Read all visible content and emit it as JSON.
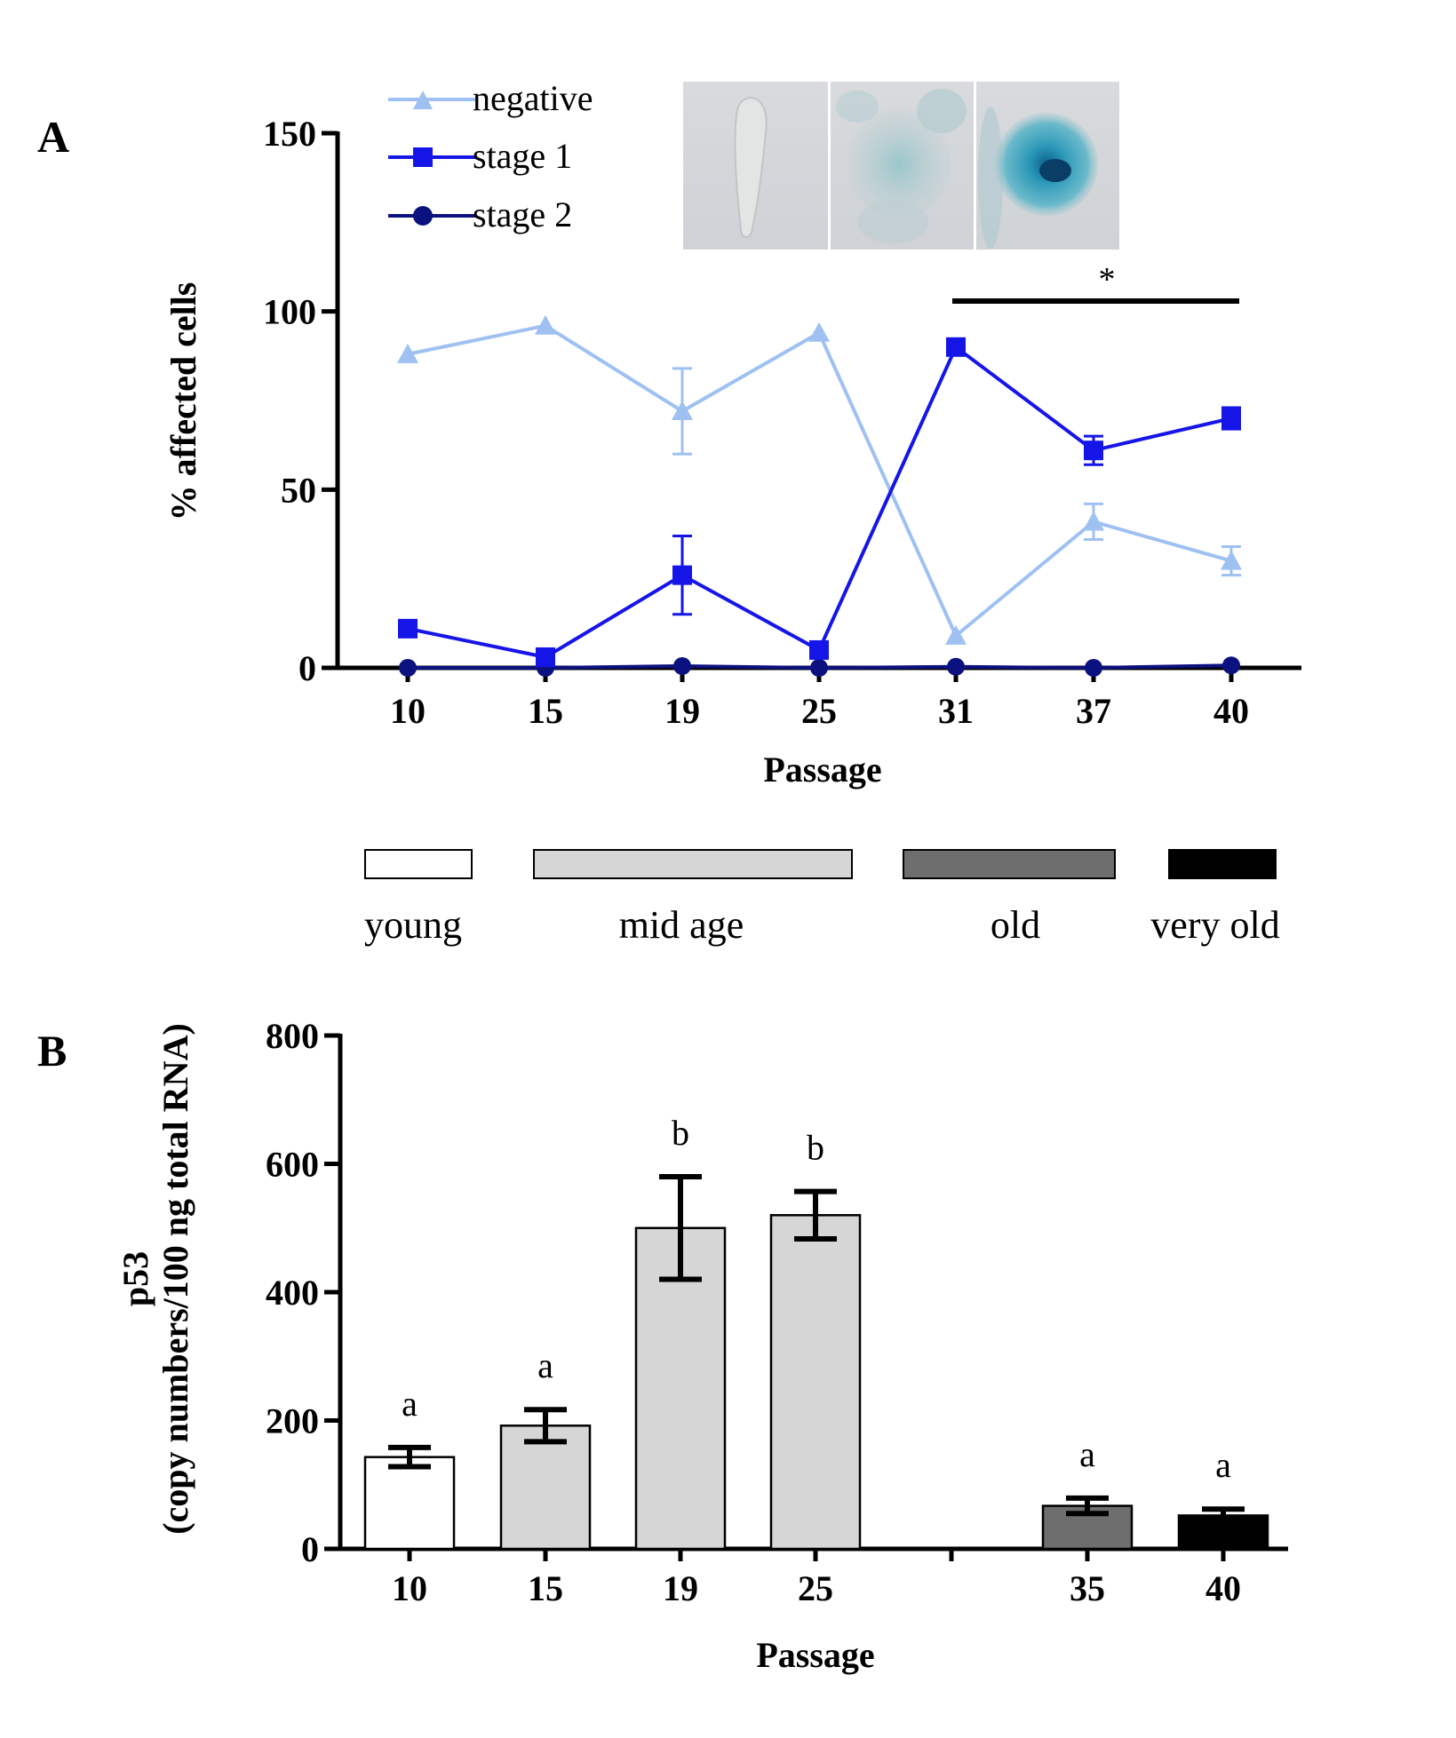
{
  "panels": {
    "a_label": "A",
    "b_label": "B"
  },
  "colors": {
    "negative": "#9ec1f2",
    "stage1": "#1515e8",
    "stage2": "#0c1180",
    "young": "#ffffff",
    "mid_age": "#d6d6d6",
    "old": "#6e6e6e",
    "very_old": "#000000"
  },
  "age_groups": [
    {
      "label": "young",
      "color": "#ffffff"
    },
    {
      "label": "mid age",
      "color": "#d6d6d6"
    },
    {
      "label": "old",
      "color": "#6e6e6e"
    },
    {
      "label": "very old",
      "color": "#000000"
    }
  ],
  "chart_data": [
    {
      "type": "line",
      "panel": "A",
      "xlabel": "Passage",
      "ylabel": "% affected cells",
      "ylim": [
        0,
        150
      ],
      "yticks": [
        "0",
        "50",
        "100",
        "150"
      ],
      "x": [
        "10",
        "15",
        "19",
        "25",
        "31",
        "37",
        "40"
      ],
      "legend_position": "top-left",
      "series": [
        {
          "name": "negative",
          "marker": "triangle",
          "color": "#9ec1f2",
          "values": [
            88,
            96,
            72,
            94,
            9,
            41,
            30
          ],
          "errors": [
            0,
            0,
            12,
            0,
            0,
            5,
            4
          ]
        },
        {
          "name": "stage 1",
          "marker": "square",
          "color": "#1515e8",
          "values": [
            11,
            3,
            26,
            5,
            90,
            61,
            70
          ],
          "errors": [
            0,
            0,
            11,
            0,
            0,
            4,
            3
          ]
        },
        {
          "name": "stage 2",
          "marker": "circle",
          "color": "#0c1180",
          "values": [
            0,
            0,
            0.5,
            0,
            0.3,
            0,
            0.7
          ],
          "errors": [
            0,
            0,
            0,
            0,
            0,
            0,
            0
          ]
        }
      ],
      "annotation": {
        "text": "*",
        "from": "31",
        "to": "40"
      },
      "inset_images": [
        "cell-negative-photo",
        "cell-stage1-photo",
        "cell-stage2-photo"
      ]
    },
    {
      "type": "bar",
      "panel": "B",
      "xlabel": "Passage",
      "ylabel_line1": "p53",
      "ylabel_line2": "(copy numbers/100 ng total RNA)",
      "ylim": [
        0,
        800
      ],
      "yticks": [
        "0",
        "200",
        "400",
        "600",
        "800"
      ],
      "categories": [
        "10",
        "15",
        "19",
        "25",
        "35",
        "40"
      ],
      "values": [
        143,
        192,
        500,
        520,
        67,
        52
      ],
      "errors": [
        15,
        25,
        80,
        37,
        12,
        10
      ],
      "letters": [
        "a",
        "a",
        "b",
        "b",
        "a",
        "a"
      ],
      "fills": [
        "#ffffff",
        "#d6d6d6",
        "#d6d6d6",
        "#d6d6d6",
        "#6e6e6e",
        "#000000"
      ]
    }
  ]
}
